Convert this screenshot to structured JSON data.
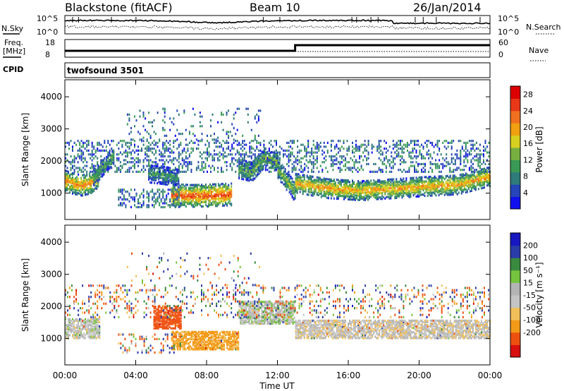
{
  "header": {
    "title": "Blackstone (fitACF)",
    "beam": "Beam 10",
    "date": "26/Jan/2014"
  },
  "top_panels": {
    "nsky_label": "N.Sky",
    "nsearch_label": "N.Search",
    "noise_ticks": [
      "10^5",
      "10^0"
    ],
    "freq_label_line1": "Freq.",
    "freq_label_line2": "[MHz]",
    "freq_ticks": [
      "18",
      "8"
    ],
    "nave_label": "Nave",
    "nave_ticks": [
      "60",
      "0"
    ],
    "cpid_label": "CPID",
    "cpid_text": "twofsound 3501"
  },
  "colors": {
    "power_scale": [
      "#1010ee",
      "#2545b8",
      "#2f7a7a",
      "#3a9a55",
      "#77b040",
      "#d8d020",
      "#f0a010",
      "#f07020",
      "#e83818",
      "#dd0000"
    ],
    "velocity_scale": [
      "#d81010",
      "#ee5010",
      "#f39a18",
      "#f2c05a",
      "#c4c4c4",
      "#b4b4b4",
      "#76c43e",
      "#3a8a40",
      "#2a3ca8",
      "#1818c0"
    ]
  },
  "chart_data": [
    {
      "type": "heatmap",
      "name": "power",
      "xlabel": "Time UT",
      "ylabel": "Slant Range [km]",
      "x_ticks": [
        "00:00",
        "04:00",
        "08:00",
        "12:00",
        "16:00",
        "20:00",
        "00:00"
      ],
      "xlim_hours": [
        0,
        24
      ],
      "ylim": [
        180,
        4530
      ],
      "y_ticks": [
        1000,
        2000,
        3000,
        4000
      ],
      "colorbar_label": "Power [dB]",
      "colorbar_ticks": [
        4,
        8,
        12,
        16,
        20,
        24,
        28
      ],
      "colorbar_range": [
        0,
        30
      ],
      "echo_bands": [
        {
          "from_hour": 0.0,
          "to_hour": 1.9,
          "center_km": [
            1420,
            1330,
            1280,
            1350,
            1550
          ],
          "width_km": 320,
          "level": 22
        },
        {
          "from_hour": 1.6,
          "to_hour": 2.8,
          "center_km": [
            1500,
            1900,
            2250
          ],
          "width_km": 260,
          "level": 12
        },
        {
          "from_hour": 6.0,
          "to_hour": 9.4,
          "center_km": [
            980,
            950,
            970,
            1000
          ],
          "width_km": 340,
          "level": 25
        },
        {
          "from_hour": 4.7,
          "to_hour": 6.4,
          "center_km": [
            1650,
            1600,
            1500
          ],
          "width_km": 280,
          "level": 10
        },
        {
          "from_hour": 9.8,
          "to_hour": 12.0,
          "center_km": [
            1800,
            1700,
            2150,
            2000
          ],
          "width_km": 300,
          "level": 14
        },
        {
          "from_hour": 12.0,
          "to_hour": 13.0,
          "center_km": [
            1800,
            1050
          ],
          "width_km": 300,
          "level": 14
        },
        {
          "from_hour": 13.0,
          "to_hour": 24.0,
          "center_km": [
            1350,
            1180,
            1120,
            1180,
            1250,
            1300,
            1560
          ],
          "width_km": 300,
          "level": 20
        }
      ],
      "scatter_regions": [
        {
          "from_hour": 0.0,
          "to_hour": 24.0,
          "from_km": 1700,
          "to_km": 2700,
          "density": 0.35
        },
        {
          "from_hour": 3.5,
          "to_hour": 11.0,
          "from_km": 2700,
          "to_km": 3700,
          "density": 0.12
        },
        {
          "from_hour": 3.0,
          "to_hour": 6.5,
          "from_km": 600,
          "to_km": 1200,
          "density": 0.5
        }
      ]
    },
    {
      "type": "heatmap",
      "name": "velocity",
      "xlabel": "Time UT",
      "ylabel": "Slant Range [km]",
      "x_ticks": [
        "00:00",
        "04:00",
        "08:00",
        "12:00",
        "16:00",
        "20:00",
        "00:00"
      ],
      "xlim_hours": [
        0,
        24
      ],
      "ylim": [
        180,
        4530
      ],
      "y_ticks": [
        1000,
        2000,
        3000,
        4000
      ],
      "colorbar_label": "Velocity [m s⁻¹]",
      "colorbar_ticks": [
        "200",
        "100",
        "50",
        "15",
        "-15",
        "-50",
        "-100",
        "-200"
      ],
      "velocity_regions": [
        {
          "from_hour": 0.0,
          "to_hour": 2.0,
          "from_km": 1050,
          "to_km": 1650,
          "velocity": 0
        },
        {
          "from_hour": 5.0,
          "to_hour": 6.6,
          "from_km": 1350,
          "to_km": 2050,
          "velocity": -170
        },
        {
          "from_hour": 6.0,
          "to_hour": 9.8,
          "from_km": 700,
          "to_km": 1250,
          "velocity": -60
        },
        {
          "from_hour": 9.8,
          "to_hour": 13.0,
          "from_km": 1500,
          "to_km": 2200,
          "velocity": 5
        },
        {
          "from_hour": 13.0,
          "to_hour": 24.0,
          "from_km": 1050,
          "to_km": 1600,
          "velocity": -5
        }
      ]
    }
  ]
}
